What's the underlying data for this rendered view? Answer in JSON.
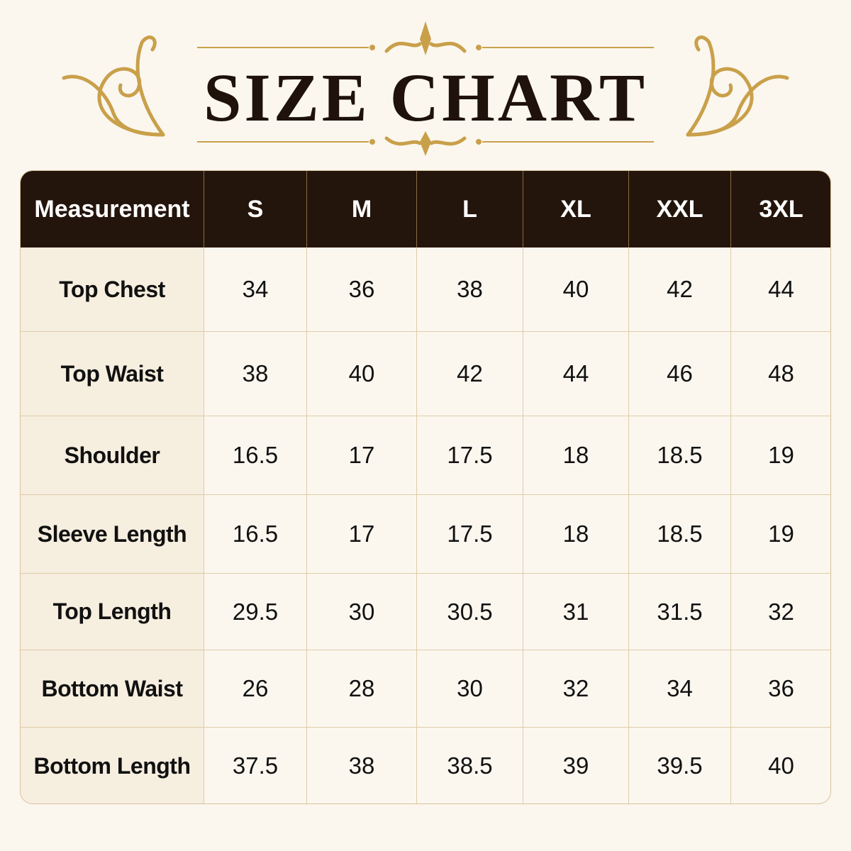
{
  "header": {
    "title": "SIZE CHART"
  },
  "table": {
    "columns": [
      "Measurement",
      "S",
      "M",
      "L",
      "XL",
      "XXL",
      "3XL"
    ],
    "rows": [
      [
        "Top Chest",
        "34",
        "36",
        "38",
        "40",
        "42",
        "44"
      ],
      [
        "Top Waist",
        "38",
        "40",
        "42",
        "44",
        "46",
        "48"
      ],
      [
        "Shoulder",
        "16.5",
        "17",
        "17.5",
        "18",
        "18.5",
        "19"
      ],
      [
        "Sleeve Length",
        "16.5",
        "17",
        "17.5",
        "18",
        "18.5",
        "19"
      ],
      [
        "Top Length",
        "29.5",
        "30",
        "30.5",
        "31",
        "31.5",
        "32"
      ],
      [
        "Bottom Waist",
        "26",
        "28",
        "30",
        "32",
        "34",
        "36"
      ],
      [
        "Bottom Length",
        "37.5",
        "38",
        "38.5",
        "39",
        "39.5",
        "40"
      ]
    ]
  }
}
